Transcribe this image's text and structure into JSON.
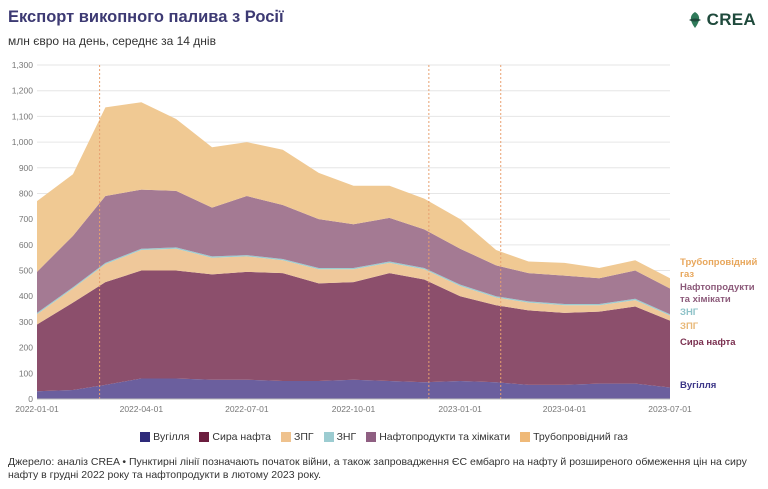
{
  "title": "Експорт викопного палива з Росії",
  "subtitle": "млн євро на день, середнє за 14 днів",
  "logo": {
    "text": "CREA",
    "icon": "crea-leaf-icon",
    "color": "#1f4a3c"
  },
  "source": "Джерело: аналіз CREA • Пунктирні лінії позначають початок війни, а також запровадження ЄС ембарго на нафту й розширеного обмеження цін на сиру нафту в грудні 2022 року та нафтопродукти в лютому 2023 року.",
  "chart_data": {
    "type": "area",
    "stacked": true,
    "x": [
      "2022-01-01",
      "2022-02-01",
      "2022-03-01",
      "2022-04-01",
      "2022-05-01",
      "2022-06-01",
      "2022-07-01",
      "2022-08-01",
      "2022-09-01",
      "2022-10-01",
      "2022-11-01",
      "2022-12-01",
      "2023-01-01",
      "2023-02-01",
      "2023-03-01",
      "2023-04-01",
      "2023-05-01",
      "2023-06-01",
      "2023-07-01"
    ],
    "x_ticks": [
      "2022-01-01",
      "2022-04-01",
      "2022-07-01",
      "2022-10-01",
      "2023-01-01",
      "2023-04-01",
      "2023-07-01"
    ],
    "ylim": [
      0,
      1300
    ],
    "y_ticks": [
      0,
      100,
      200,
      300,
      400,
      500,
      600,
      700,
      800,
      900,
      1000,
      1100,
      1200,
      1300
    ],
    "y_tick_labels": [
      "0",
      "100",
      "200",
      "300",
      "400",
      "500",
      "600",
      "700",
      "800",
      "900",
      "1,000",
      "1,100",
      "1,200",
      "1,300"
    ],
    "grid": true,
    "event_lines": [
      "2022-02-24",
      "2022-12-05",
      "2023-02-05"
    ],
    "series": [
      {
        "name": "Вугілля",
        "color": "#6b5f9e",
        "values": [
          30,
          35,
          55,
          80,
          80,
          75,
          75,
          70,
          70,
          75,
          70,
          65,
          70,
          65,
          55,
          55,
          60,
          60,
          45
        ]
      },
      {
        "name": "Сира нафта",
        "color": "#8c4f6c",
        "values": [
          260,
          340,
          400,
          420,
          420,
          410,
          420,
          420,
          380,
          380,
          420,
          400,
          330,
          300,
          290,
          280,
          280,
          300,
          260
        ]
      },
      {
        "name": "ЗПГ",
        "color": "#efc89a",
        "values": [
          40,
          55,
          70,
          80,
          85,
          65,
          60,
          50,
          55,
          50,
          40,
          40,
          40,
          30,
          30,
          30,
          25,
          25,
          20
        ]
      },
      {
        "name": "ЗНГ",
        "color": "#9cccd1",
        "values": [
          5,
          5,
          5,
          5,
          5,
          5,
          5,
          5,
          5,
          5,
          5,
          5,
          5,
          5,
          5,
          5,
          5,
          5,
          5
        ]
      },
      {
        "name": "Нафтопродукти та хімікати",
        "color": "#a47a93",
        "values": [
          160,
          200,
          260,
          230,
          220,
          190,
          230,
          210,
          190,
          170,
          170,
          150,
          140,
          120,
          110,
          110,
          100,
          110,
          100
        ]
      },
      {
        "name": "Трубопровідний газ",
        "color": "#f0c993",
        "values": [
          275,
          240,
          345,
          340,
          280,
          235,
          210,
          215,
          180,
          150,
          125,
          120,
          115,
          60,
          45,
          50,
          40,
          40,
          40
        ]
      }
    ],
    "right_labels": [
      {
        "text": "Трубопровідний газ",
        "color": "#e8a75c"
      },
      {
        "text": "Нафтопродукти та хімікати",
        "color": "#8c5a7a"
      },
      {
        "text": "ЗНГ",
        "color": "#8fc3c9"
      },
      {
        "text": "ЗПГ",
        "color": "#e8b878"
      },
      {
        "text": "Сира нафта",
        "color": "#7a2f4f"
      },
      {
        "text": "Вугілля",
        "color": "#3b3587"
      }
    ],
    "legend": [
      {
        "name": "Вугілля",
        "color": "#2e2a7a"
      },
      {
        "name": "Сира нафта",
        "color": "#6b1d3e"
      },
      {
        "name": "ЗПГ",
        "color": "#efc28e"
      },
      {
        "name": "ЗНГ",
        "color": "#9cccd1"
      },
      {
        "name": "Нафтопродукти та хімікати",
        "color": "#8f5f82"
      },
      {
        "name": "Трубопровідний газ",
        "color": "#efb978"
      }
    ],
    "legend_placement": "bottom"
  }
}
